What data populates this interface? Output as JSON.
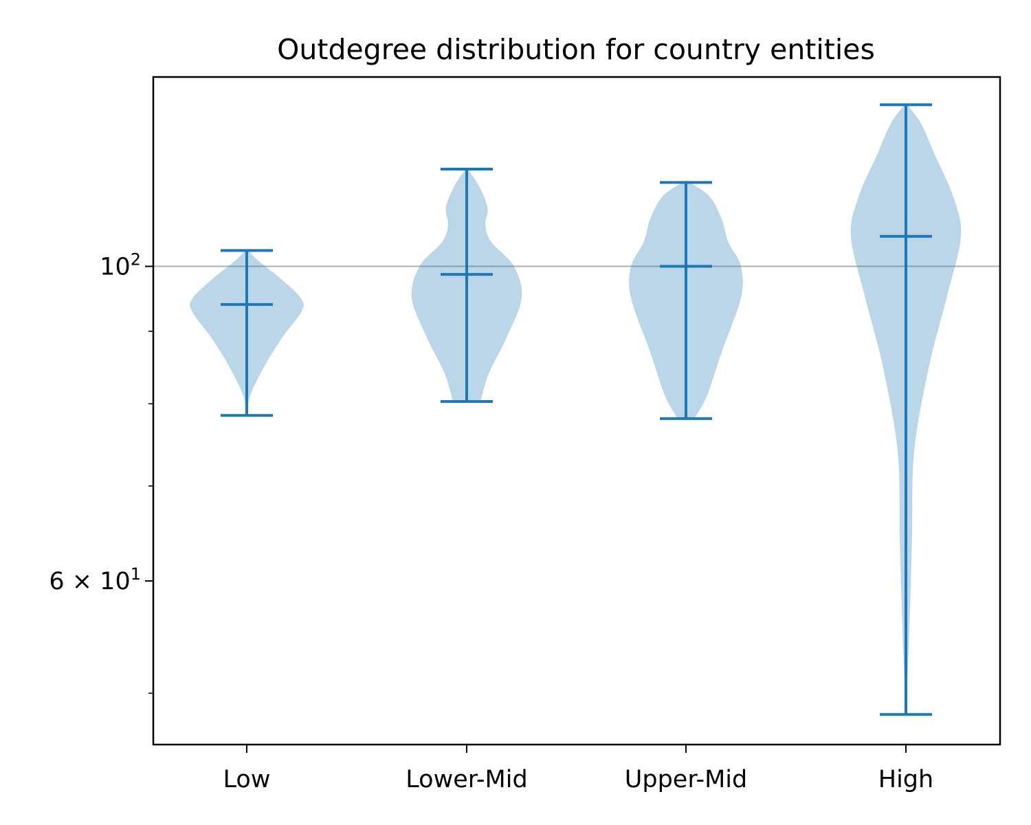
{
  "chart_data": {
    "type": "violin",
    "title": "Outdegree distribution for country entities",
    "xlabel": "",
    "ylabel": "",
    "yscale": "log",
    "ylim": [
      46,
      136
    ],
    "categories": [
      "Low",
      "Lower-Mid",
      "Upper-Mid",
      "High"
    ],
    "series": [
      {
        "min": 78.5,
        "max": 102.6,
        "median": 94.0,
        "density": [
          [
            78.5,
            0.02
          ],
          [
            81,
            0.06
          ],
          [
            85,
            0.32
          ],
          [
            89,
            0.64
          ],
          [
            93,
            1.0
          ],
          [
            95,
            0.98
          ],
          [
            98,
            0.62
          ],
          [
            101,
            0.2
          ],
          [
            102.6,
            0.03
          ]
        ]
      },
      {
        "min": 80.3,
        "max": 117.1,
        "median": 98.7,
        "density": [
          [
            80.3,
            0.25
          ],
          [
            84,
            0.4
          ],
          [
            89,
            0.72
          ],
          [
            95,
            1.0
          ],
          [
            100,
            0.86
          ],
          [
            104,
            0.45
          ],
          [
            107,
            0.34
          ],
          [
            110,
            0.38
          ],
          [
            114,
            0.22
          ],
          [
            117.1,
            0.02
          ]
        ]
      },
      {
        "min": 78.1,
        "max": 114.6,
        "median": 100.0,
        "density": [
          [
            78.1,
            0.15
          ],
          [
            81,
            0.38
          ],
          [
            87,
            0.65
          ],
          [
            95,
            1.0
          ],
          [
            100,
            1.0
          ],
          [
            104,
            0.77
          ],
          [
            108,
            0.65
          ],
          [
            112,
            0.43
          ],
          [
            114.6,
            0.07
          ]
        ]
      },
      {
        "min": 48.3,
        "max": 130.0,
        "median": 105.0,
        "density": [
          [
            48.3,
            0.0
          ],
          [
            55,
            0.06
          ],
          [
            64,
            0.11
          ],
          [
            74,
            0.15
          ],
          [
            85,
            0.42
          ],
          [
            95,
            0.74
          ],
          [
            105,
            1.0
          ],
          [
            112,
            0.86
          ],
          [
            120,
            0.52
          ],
          [
            126,
            0.28
          ],
          [
            130,
            0.03
          ]
        ]
      }
    ],
    "yticks": [
      {
        "value": 100,
        "base": "10",
        "exp": "2"
      },
      {
        "value": 60,
        "base": "6 × 10",
        "exp": "1"
      }
    ],
    "minor_yticks": [
      50,
      70,
      80,
      90
    ],
    "grid": "horizontal line at 10^2",
    "colors": {
      "body": "#1f77b4",
      "body_opacity": 0.3,
      "lines": "#1f77b4",
      "grid": "#b0b0b0",
      "axes": "#000000"
    }
  }
}
